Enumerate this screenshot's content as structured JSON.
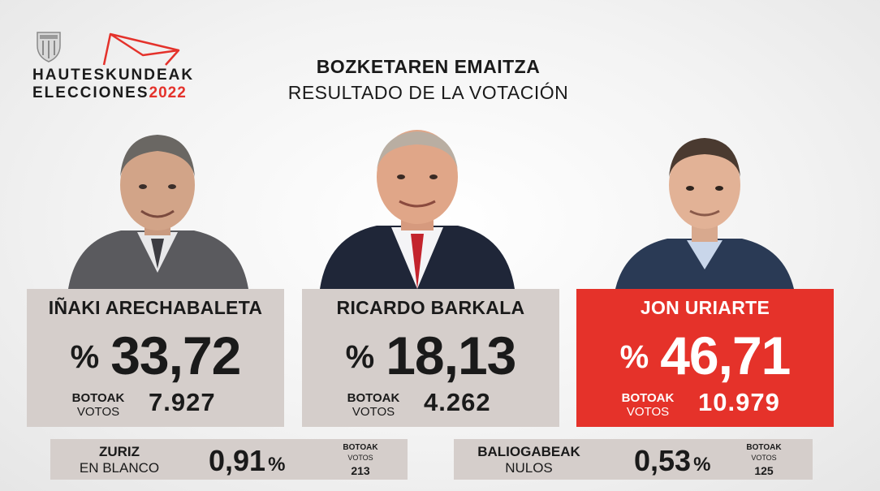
{
  "logo": {
    "line1": "HAUTESKUNDEAK",
    "line2_text": "ELECCIONES",
    "line2_year": "2022",
    "crest_icon": "club-crest-icon",
    "envelope_icon": "envelope-outline-icon",
    "accent_color": "#e4322b"
  },
  "title": {
    "basque": "BOZKETAREN EMAITZA",
    "spanish": "RESULTADO DE LA VOTACIÓN"
  },
  "candidates": [
    {
      "name": "IÑAKI ARECHABALETA",
      "percent_sign": "%",
      "percent": "33,72",
      "votes_label_eu": "BOTOAK",
      "votes_label_es": "VOTOS",
      "votes": "7.927",
      "winner": false
    },
    {
      "name": "RICARDO BARKALA",
      "percent_sign": "%",
      "percent": "18,13",
      "votes_label_eu": "BOTOAK",
      "votes_label_es": "VOTOS",
      "votes": "4.262",
      "winner": false
    },
    {
      "name": "JON URIARTE",
      "percent_sign": "%",
      "percent": "46,71",
      "votes_label_eu": "BOTOAK",
      "votes_label_es": "VOTOS",
      "votes": "10.979",
      "winner": true
    }
  ],
  "blank": {
    "label_eu": "ZURIZ",
    "label_es": "EN BLANCO",
    "percent": "0,91",
    "percent_sign": "%",
    "votes_label_eu": "BOTOAK",
    "votes_label_es": "VOTOS",
    "votes": "213"
  },
  "null": {
    "label_eu": "BALIOGABEAK",
    "label_es": "NULOS",
    "percent": "0,53",
    "percent_sign": "%",
    "votes_label_eu": "BOTOAK",
    "votes_label_es": "VOTOS",
    "votes": "125"
  },
  "colors": {
    "card_bg": "#d5cecb",
    "winner_bg": "#e5322a"
  }
}
